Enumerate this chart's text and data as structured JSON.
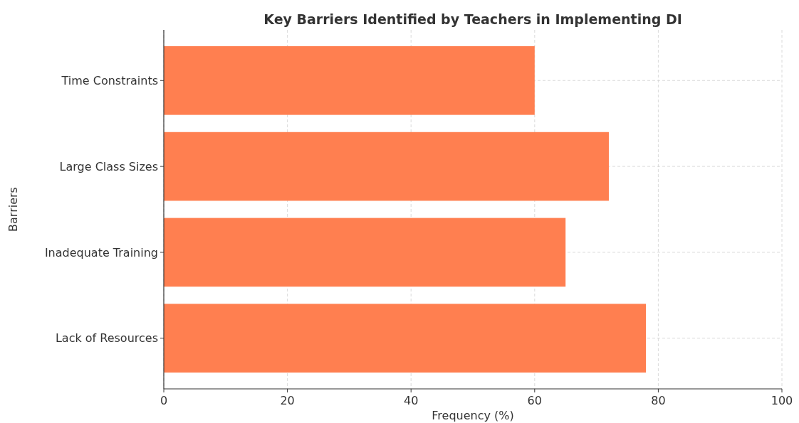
{
  "chart_data": {
    "type": "bar",
    "orientation": "horizontal",
    "title": "Key Barriers Identified by Teachers in Implementing DI",
    "xlabel": "Frequency (%)",
    "ylabel": "Barriers",
    "categories": [
      "Time Constraints",
      "Large Class Sizes",
      "Inadequate Training",
      "Lack of Resources"
    ],
    "values": [
      60,
      72,
      65,
      78
    ],
    "color": "#ff7f50",
    "xlim": [
      0,
      100
    ],
    "xticks": [
      0,
      20,
      40,
      60,
      80,
      100
    ],
    "grid": true
  }
}
